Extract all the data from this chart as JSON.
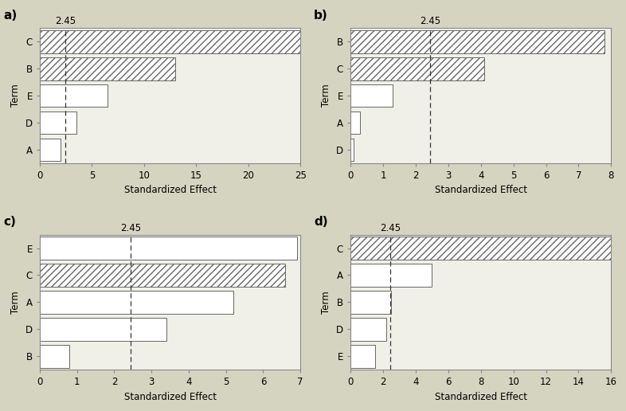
{
  "panels": [
    {
      "label": "a)",
      "terms": [
        "A",
        "D",
        "E",
        "B",
        "C"
      ],
      "values": [
        2.0,
        3.5,
        6.5,
        13.0,
        25.0
      ],
      "hatched": [
        false,
        false,
        false,
        true,
        true
      ],
      "xlim": [
        0,
        25
      ],
      "xticks": [
        0,
        5,
        10,
        15,
        20,
        25
      ],
      "significance_line": 2.45
    },
    {
      "label": "b)",
      "terms": [
        "D",
        "A",
        "E",
        "C",
        "B"
      ],
      "values": [
        0.1,
        0.28,
        1.3,
        4.1,
        7.8
      ],
      "hatched": [
        false,
        false,
        false,
        true,
        true
      ],
      "xlim": [
        0,
        8
      ],
      "xticks": [
        0,
        1,
        2,
        3,
        4,
        5,
        6,
        7,
        8
      ],
      "significance_line": 2.45
    },
    {
      "label": "c)",
      "terms": [
        "B",
        "D",
        "A",
        "C",
        "E"
      ],
      "values": [
        0.8,
        3.4,
        5.2,
        6.6,
        6.9
      ],
      "hatched": [
        false,
        false,
        false,
        true,
        false
      ],
      "xlim": [
        0,
        7
      ],
      "xticks": [
        0,
        1,
        2,
        3,
        4,
        5,
        6,
        7
      ],
      "significance_line": 2.45
    },
    {
      "label": "d)",
      "terms": [
        "E",
        "D",
        "B",
        "A",
        "C"
      ],
      "values": [
        1.5,
        2.2,
        2.5,
        5.0,
        16.0
      ],
      "hatched": [
        false,
        false,
        false,
        false,
        true
      ],
      "xlim": [
        0,
        16
      ],
      "xticks": [
        0,
        2,
        4,
        6,
        8,
        10,
        12,
        14,
        16
      ],
      "significance_line": 2.45
    }
  ],
  "background_color": "#d4d4c0",
  "plot_bg_color": "#f0f0e8",
  "bar_height": 0.85,
  "hatch_pattern": "////",
  "bar_edge_color": "#666666",
  "sig_line_color": "#333333",
  "xlabel": "Standardized Effect",
  "ylabel": "Term",
  "font_size": 8.5
}
